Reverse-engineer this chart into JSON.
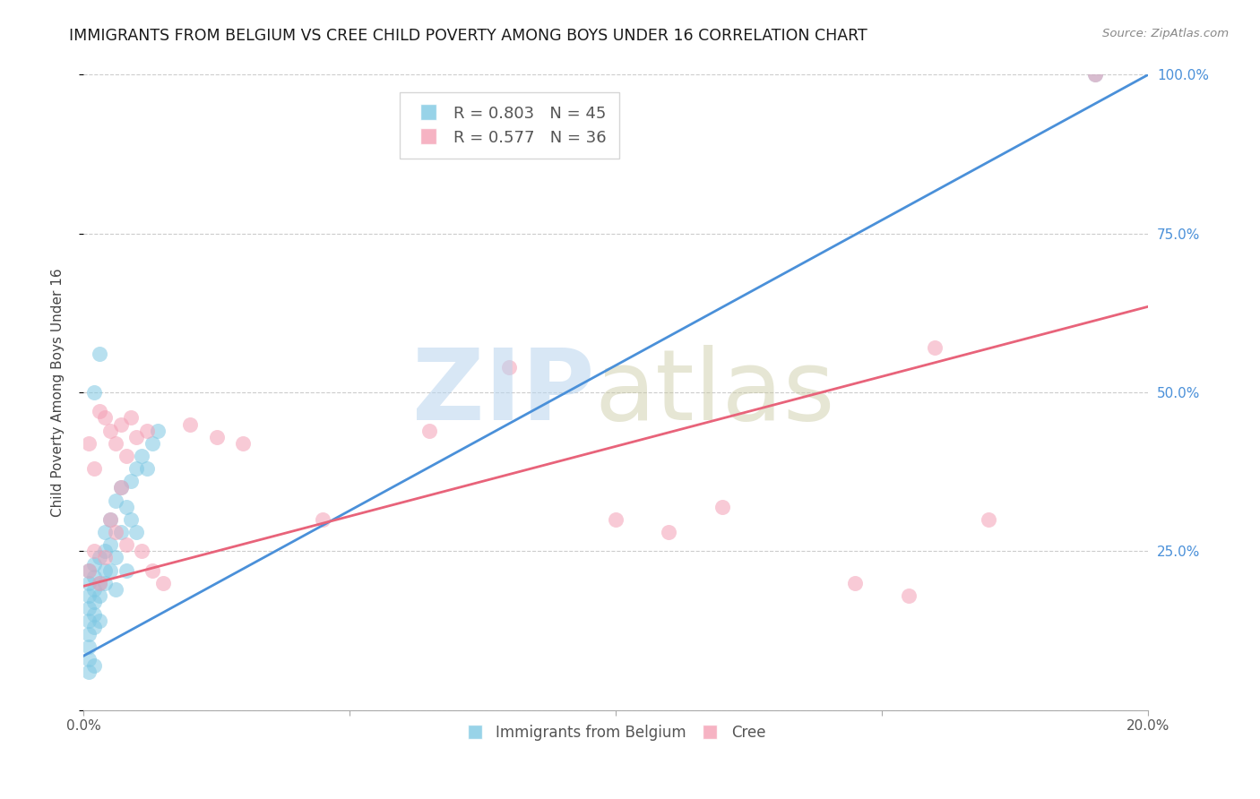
{
  "title": "IMMIGRANTS FROM BELGIUM VS CREE CHILD POVERTY AMONG BOYS UNDER 16 CORRELATION CHART",
  "source": "Source: ZipAtlas.com",
  "ylabel": "Child Poverty Among Boys Under 16",
  "xlim": [
    0.0,
    0.2
  ],
  "ylim": [
    0.0,
    1.0
  ],
  "blue_color": "#7ec8e3",
  "pink_color": "#f4a0b5",
  "blue_line_color": "#4a90d9",
  "pink_line_color": "#e8637a",
  "blue_line": [
    0.0,
    0.085,
    0.2,
    1.0
  ],
  "pink_line": [
    0.0,
    0.195,
    0.2,
    0.635
  ],
  "blue_scatter_x": [
    0.001,
    0.001,
    0.001,
    0.001,
    0.001,
    0.001,
    0.001,
    0.001,
    0.002,
    0.002,
    0.002,
    0.002,
    0.002,
    0.002,
    0.003,
    0.003,
    0.003,
    0.003,
    0.004,
    0.004,
    0.004,
    0.004,
    0.005,
    0.005,
    0.005,
    0.006,
    0.006,
    0.007,
    0.007,
    0.008,
    0.008,
    0.009,
    0.009,
    0.01,
    0.01,
    0.011,
    0.012,
    0.013,
    0.014,
    0.003,
    0.001,
    0.002,
    0.006,
    0.19,
    0.002
  ],
  "blue_scatter_y": [
    0.22,
    0.2,
    0.18,
    0.16,
    0.14,
    0.12,
    0.1,
    0.08,
    0.23,
    0.21,
    0.19,
    0.17,
    0.15,
    0.13,
    0.24,
    0.2,
    0.18,
    0.14,
    0.28,
    0.25,
    0.22,
    0.2,
    0.3,
    0.26,
    0.22,
    0.33,
    0.24,
    0.35,
    0.28,
    0.32,
    0.22,
    0.36,
    0.3,
    0.38,
    0.28,
    0.4,
    0.38,
    0.42,
    0.44,
    0.56,
    0.06,
    0.07,
    0.19,
    1.0,
    0.5
  ],
  "pink_scatter_x": [
    0.001,
    0.001,
    0.002,
    0.002,
    0.003,
    0.003,
    0.004,
    0.004,
    0.005,
    0.005,
    0.006,
    0.006,
    0.007,
    0.007,
    0.008,
    0.008,
    0.009,
    0.01,
    0.011,
    0.012,
    0.013,
    0.015,
    0.02,
    0.025,
    0.03,
    0.045,
    0.065,
    0.08,
    0.1,
    0.11,
    0.12,
    0.145,
    0.155,
    0.16,
    0.17,
    0.19
  ],
  "pink_scatter_y": [
    0.22,
    0.42,
    0.25,
    0.38,
    0.2,
    0.47,
    0.24,
    0.46,
    0.3,
    0.44,
    0.28,
    0.42,
    0.35,
    0.45,
    0.4,
    0.26,
    0.46,
    0.43,
    0.25,
    0.44,
    0.22,
    0.2,
    0.45,
    0.43,
    0.42,
    0.3,
    0.44,
    0.54,
    0.3,
    0.28,
    0.32,
    0.2,
    0.18,
    0.57,
    0.3,
    1.0
  ]
}
